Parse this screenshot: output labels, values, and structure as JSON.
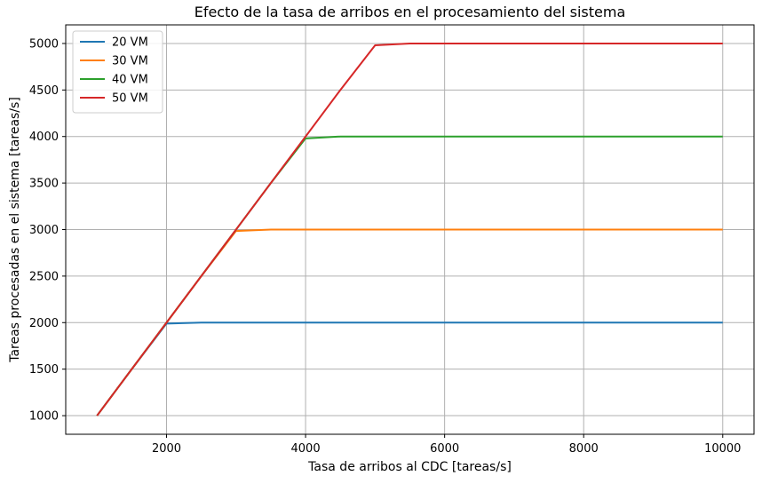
{
  "chart_data": {
    "type": "line",
    "title": "Efecto de la tasa de arribos en el procesamiento del sistema",
    "xlabel": "Tasa de arribos al CDC [tareas/s]",
    "ylabel": "Tareas procesadas en el sistema [tareas/s]",
    "xlim": [
      550,
      10450
    ],
    "ylim": [
      800,
      5200
    ],
    "xticks": [
      2000,
      4000,
      6000,
      8000,
      10000
    ],
    "yticks": [
      1000,
      1500,
      2000,
      2500,
      3000,
      3500,
      4000,
      4500,
      5000
    ],
    "grid": true,
    "legend_position": "top-left",
    "x": [
      1000,
      1500,
      2000,
      2500,
      3000,
      3500,
      4000,
      4500,
      5000,
      5500,
      6000,
      6500,
      7000,
      7500,
      8000,
      8500,
      9000,
      9500,
      10000
    ],
    "series": [
      {
        "name": "20 VM",
        "color": "#1f77b4",
        "values": [
          1000,
          1500,
          1990,
          2000,
          2000,
          2000,
          2000,
          2000,
          2000,
          2000,
          2000,
          2000,
          2000,
          2000,
          2000,
          2000,
          2000,
          2000,
          2000
        ]
      },
      {
        "name": "30 VM",
        "color": "#ff7f0e",
        "values": [
          1000,
          1500,
          2000,
          2500,
          2985,
          3000,
          3000,
          3000,
          3000,
          3000,
          3000,
          3000,
          3000,
          3000,
          3000,
          3000,
          3000,
          3000,
          3000
        ]
      },
      {
        "name": "40 VM",
        "color": "#2ca02c",
        "values": [
          1000,
          1500,
          2000,
          2500,
          3000,
          3500,
          3980,
          4000,
          4000,
          4000,
          4000,
          4000,
          4000,
          4000,
          4000,
          4000,
          4000,
          4000,
          4000
        ]
      },
      {
        "name": "50 VM",
        "color": "#d62728",
        "values": [
          1000,
          1500,
          2000,
          2500,
          3000,
          3500,
          4000,
          4500,
          4980,
          5000,
          5000,
          5000,
          5000,
          5000,
          5000,
          5000,
          5000,
          5000,
          5000
        ]
      }
    ]
  }
}
